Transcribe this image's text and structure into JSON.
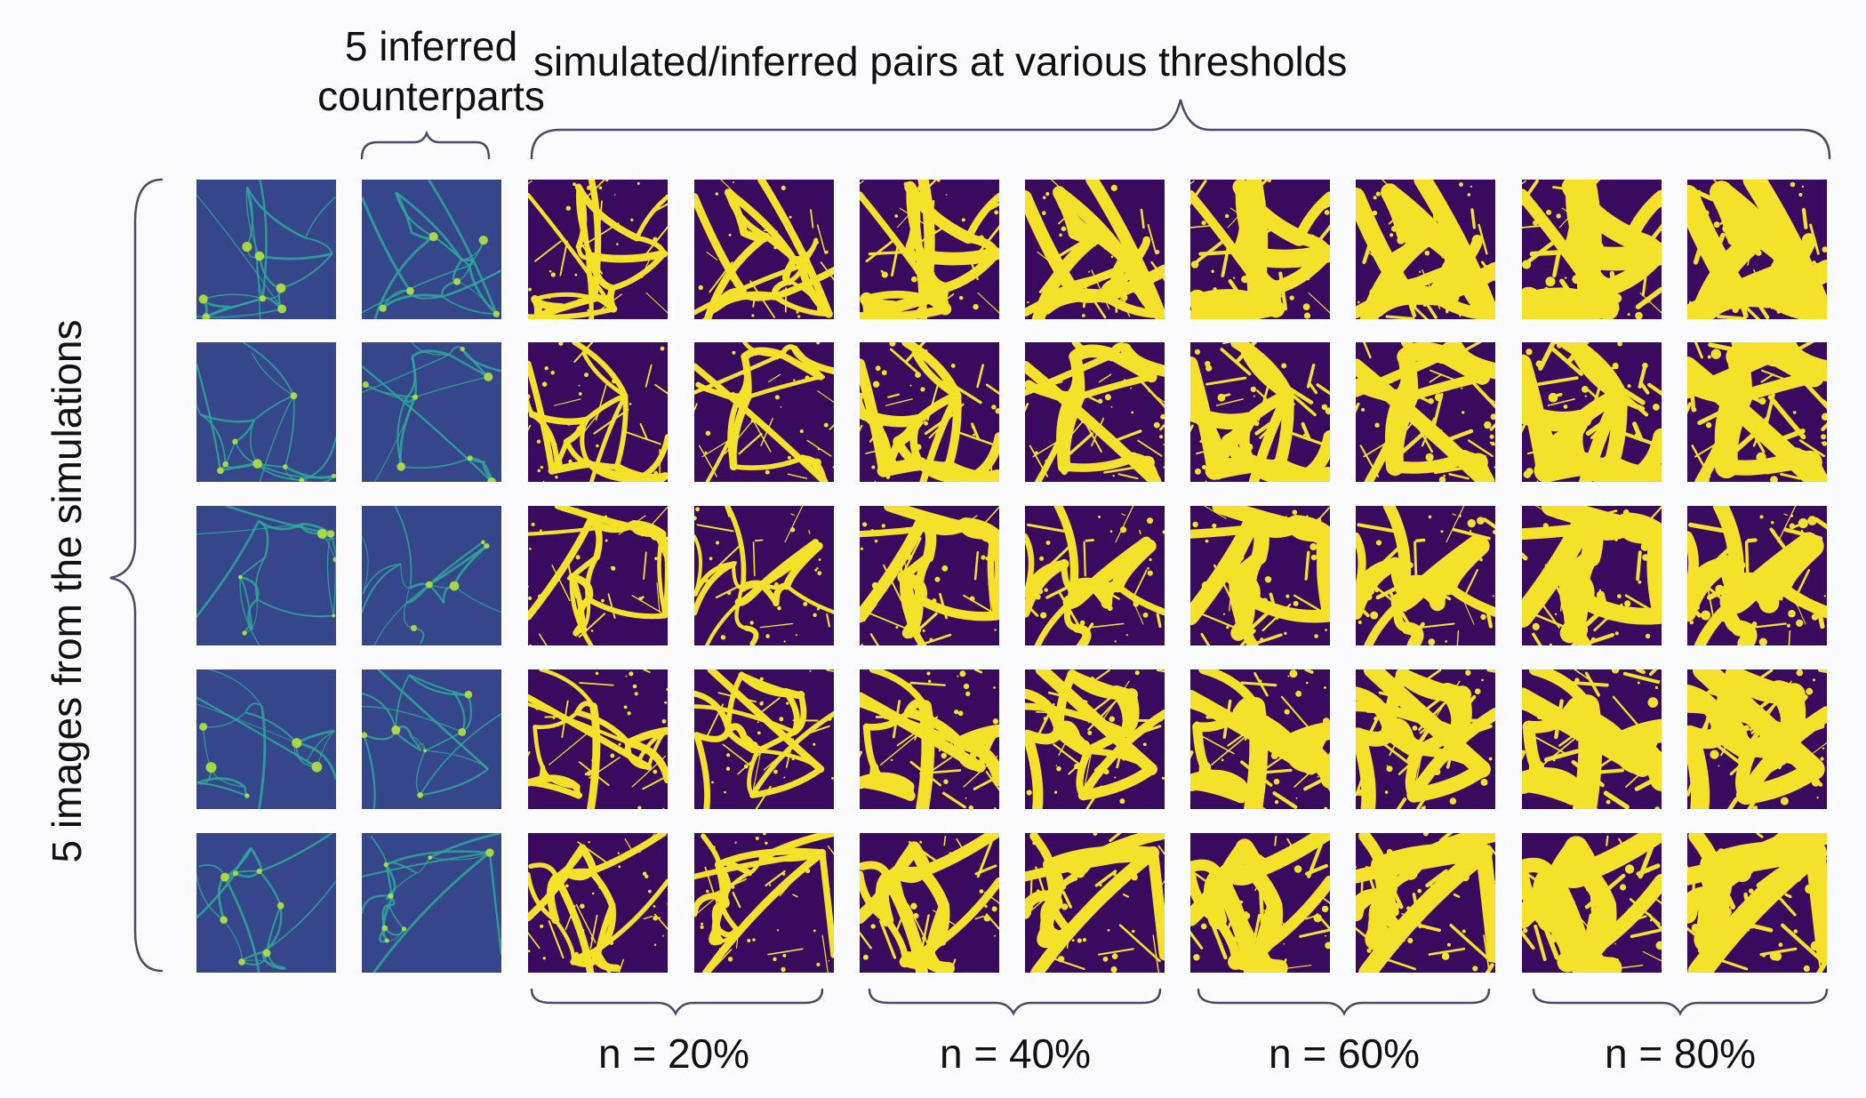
{
  "header": {
    "simulated_pairs": "simulated/inferred pairs at various thresholds",
    "inferred_line1": "5 inferred",
    "inferred_line2": "counterparts",
    "side_label": "5 images from the simulations"
  },
  "thresholds": [
    {
      "label": "n = 20%",
      "fill": 0.2
    },
    {
      "label": "n = 40%",
      "fill": 0.4
    },
    {
      "label": "n = 60%",
      "fill": 0.6
    },
    {
      "label": "n = 80%",
      "fill": 0.8
    }
  ],
  "grid": {
    "rows": 5,
    "columns": [
      "simulated",
      "inferred",
      "n=20% sim",
      "n=20% inf",
      "n=40% sim",
      "n=40% inf",
      "n=60% sim",
      "n=60% inf",
      "n=80% sim",
      "n=80% inf"
    ]
  },
  "colors": {
    "background": "#fbfbfd",
    "brace": "#4a4a6a",
    "density_dark": "#3b3c8c",
    "density_filament": "#2ea89a",
    "density_node": "#b5e23c",
    "mask_dark": "#3a0a5e",
    "mask_bright": "#f5e12a"
  }
}
